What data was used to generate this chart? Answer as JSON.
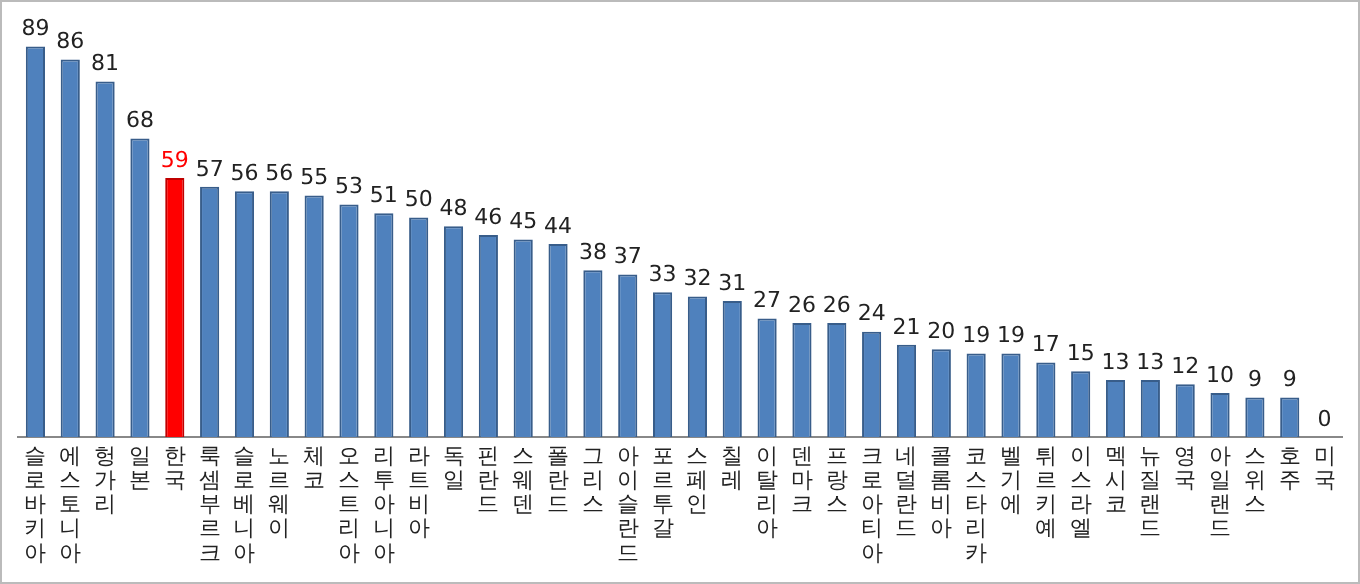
{
  "chart_data": {
    "type": "bar",
    "categories": [
      "슬로바키아",
      "에스토니아",
      "헝가리",
      "일본",
      "한국",
      "룩셈부르크",
      "슬로베니아",
      "노르웨이",
      "체코",
      "오스트리아",
      "리투아니아",
      "라트비아",
      "독일",
      "핀란드",
      "스웨덴",
      "폴란드",
      "그리스",
      "아이슬란드",
      "포르투갈",
      "스페인",
      "칠레",
      "이탈리아",
      "덴마크",
      "프랑스",
      "크로아티아",
      "네덜란드",
      "콜롬비아",
      "코스타리카",
      "벨기에",
      "튀르키예",
      "이스라엘",
      "멕시코",
      "뉴질랜드",
      "영국",
      "아일랜드",
      "스위스",
      "호주",
      "미국"
    ],
    "values": [
      89,
      86,
      81,
      68,
      59,
      57,
      56,
      56,
      55,
      53,
      51,
      50,
      48,
      46,
      45,
      44,
      38,
      37,
      33,
      32,
      31,
      27,
      26,
      26,
      24,
      21,
      20,
      19,
      19,
      17,
      15,
      13,
      13,
      12,
      10,
      9,
      9,
      0
    ],
    "colors": [
      "#4f81bd",
      "#4f81bd",
      "#4f81bd",
      "#4f81bd",
      "#ff0000",
      "#4f81bd",
      "#4f81bd",
      "#4f81bd",
      "#4f81bd",
      "#4f81bd",
      "#4f81bd",
      "#4f81bd",
      "#4f81bd",
      "#4f81bd",
      "#4f81bd",
      "#4f81bd",
      "#4f81bd",
      "#4f81bd",
      "#4f81bd",
      "#4f81bd",
      "#4f81bd",
      "#4f81bd",
      "#4f81bd",
      "#4f81bd",
      "#4f81bd",
      "#4f81bd",
      "#4f81bd",
      "#4f81bd",
      "#4f81bd",
      "#4f81bd",
      "#4f81bd",
      "#4f81bd",
      "#4f81bd",
      "#4f81bd",
      "#4f81bd",
      "#4f81bd",
      "#4f81bd",
      "#4f81bd"
    ],
    "data_labels": true,
    "grid": false,
    "legend": false
  }
}
